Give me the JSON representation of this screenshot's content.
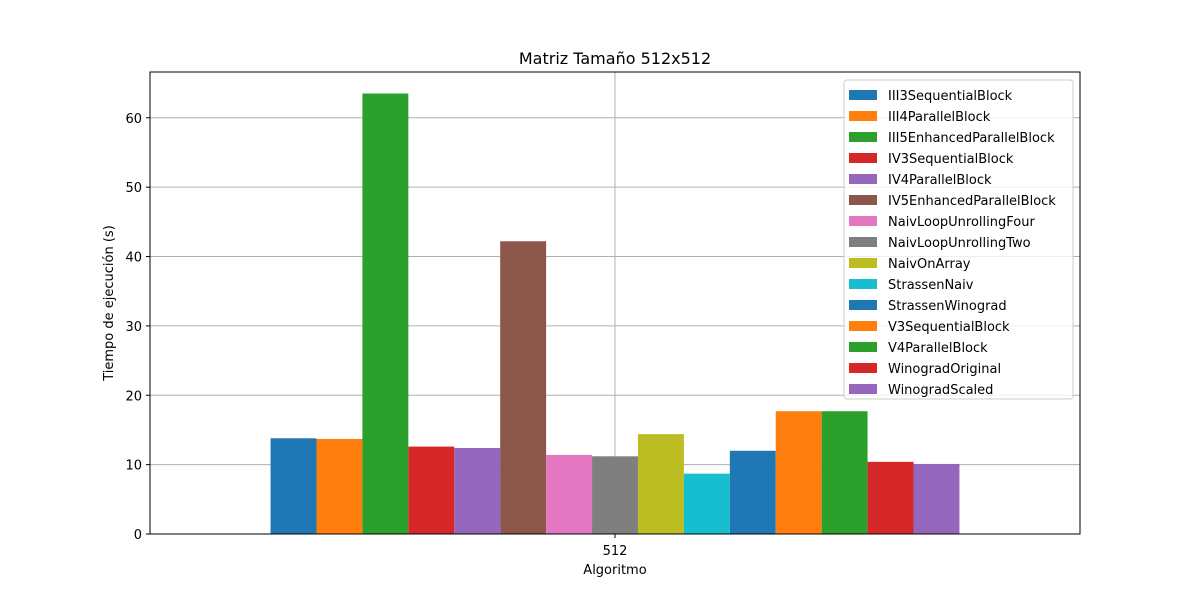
{
  "chart_data": {
    "type": "bar",
    "title": "Matriz Tamaño 512x512",
    "xlabel": "Algoritmo",
    "ylabel": "Tiempo de ejecución (s)",
    "categories": [
      "512"
    ],
    "ylim": [
      0,
      66.6
    ],
    "yticks": [
      0,
      10,
      20,
      30,
      40,
      50,
      60
    ],
    "grid": true,
    "legend_position": "top-right",
    "series": [
      {
        "name": "III3SequentialBlock",
        "color": "#1f77b4",
        "values": [
          13.8
        ]
      },
      {
        "name": "III4ParallelBlock",
        "color": "#ff7f0e",
        "values": [
          13.7
        ]
      },
      {
        "name": "III5EnhancedParallelBlock",
        "color": "#2ca02c",
        "values": [
          63.5
        ]
      },
      {
        "name": "IV3SequentialBlock",
        "color": "#d62728",
        "values": [
          12.6
        ]
      },
      {
        "name": "IV4ParallelBlock",
        "color": "#9467bd",
        "values": [
          12.4
        ]
      },
      {
        "name": "IV5EnhancedParallelBlock",
        "color": "#8c564b",
        "values": [
          42.2
        ]
      },
      {
        "name": "NaivLoopUnrollingFour",
        "color": "#e377c2",
        "values": [
          11.4
        ]
      },
      {
        "name": "NaivLoopUnrollingTwo",
        "color": "#7f7f7f",
        "values": [
          11.2
        ]
      },
      {
        "name": "NaivOnArray",
        "color": "#bcbd22",
        "values": [
          14.4
        ]
      },
      {
        "name": "StrassenNaiv",
        "color": "#17becf",
        "values": [
          8.7
        ]
      },
      {
        "name": "StrassenWinograd",
        "color": "#1f77b4",
        "values": [
          12.0
        ]
      },
      {
        "name": "V3SequentialBlock",
        "color": "#ff7f0e",
        "values": [
          17.7
        ]
      },
      {
        "name": "V4ParallelBlock",
        "color": "#2ca02c",
        "values": [
          17.7
        ]
      },
      {
        "name": "WinogradOriginal",
        "color": "#d62728",
        "values": [
          10.4
        ]
      },
      {
        "name": "WinogradScaled",
        "color": "#9467bd",
        "values": [
          10.1
        ]
      }
    ]
  }
}
